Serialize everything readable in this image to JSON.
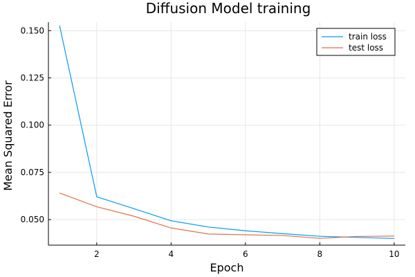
{
  "chart_data": {
    "type": "line",
    "title": "Diffusion Model training",
    "xlabel": "Epoch",
    "ylabel": "Mean Squared Error",
    "xlim": [
      0.7,
      10.3
    ],
    "ylim": [
      0.0365,
      0.1545
    ],
    "xticks": [
      2,
      4,
      6,
      8,
      10
    ],
    "xtick_labels": [
      "2",
      "4",
      "6",
      "8",
      "10"
    ],
    "yticks": [
      0.05,
      0.075,
      0.1,
      0.125,
      0.15
    ],
    "ytick_labels": [
      "0.050",
      "0.075",
      "0.100",
      "0.125",
      "0.150"
    ],
    "grid": true,
    "legend_position": "top-right",
    "x": [
      1,
      2,
      3,
      4,
      5,
      6,
      7,
      8,
      9,
      10
    ],
    "series": [
      {
        "name": "train loss",
        "color": "#009af9",
        "values": [
          0.1527,
          0.0621,
          0.0558,
          0.0494,
          0.0461,
          0.0441,
          0.0426,
          0.0412,
          0.0406,
          0.04
        ]
      },
      {
        "name": "test loss",
        "color": "#e26f46",
        "values": [
          0.0641,
          0.0568,
          0.0518,
          0.0456,
          0.0424,
          0.042,
          0.0416,
          0.0401,
          0.0411,
          0.0413
        ]
      }
    ]
  }
}
